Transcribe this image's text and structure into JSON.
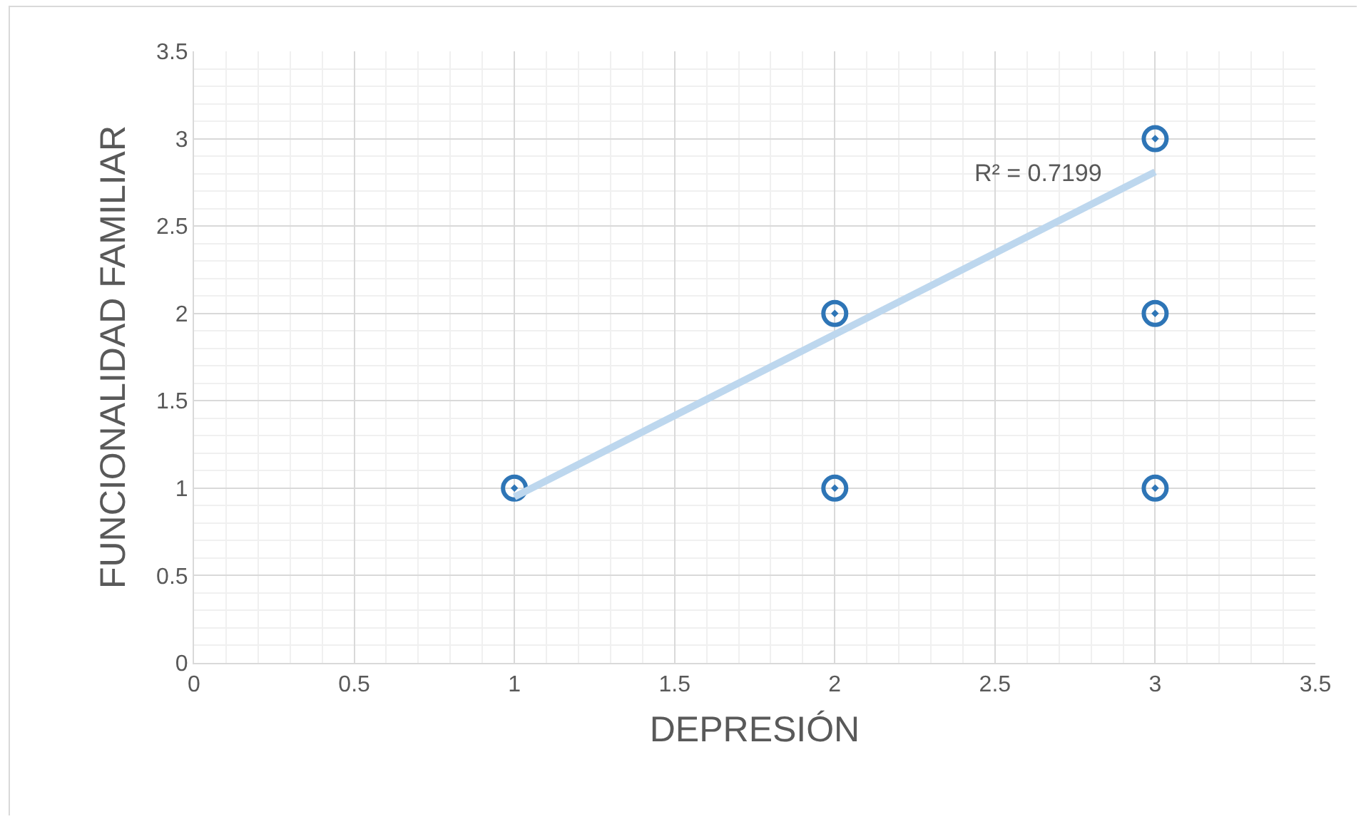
{
  "chart_data": {
    "type": "scatter",
    "xlabel": "DEPRESIÓN",
    "ylabel": "FUNCIONALIDAD FAMILIAR",
    "x": [
      1,
      2,
      2,
      3,
      3,
      3
    ],
    "series": [
      {
        "color": "#2e75b6",
        "marker": "circle",
        "values": [
          1,
          2,
          1,
          3,
          2,
          1
        ]
      },
      {
        "type": "line",
        "color": "#bdd7ee",
        "x": [
          1,
          3
        ],
        "values": [
          0.95,
          2.81
        ]
      }
    ],
    "annotations": [
      "R² = 0.7199"
    ],
    "xlim": [
      0,
      3.5
    ],
    "xticks": [
      0,
      0.5,
      1,
      1.5,
      2,
      2.5,
      3,
      3.5
    ],
    "ylim": [
      0,
      3.5
    ],
    "yticks": [
      0,
      0.5,
      1,
      1.5,
      2,
      2.5,
      3,
      3.5
    ],
    "grid": true
  }
}
